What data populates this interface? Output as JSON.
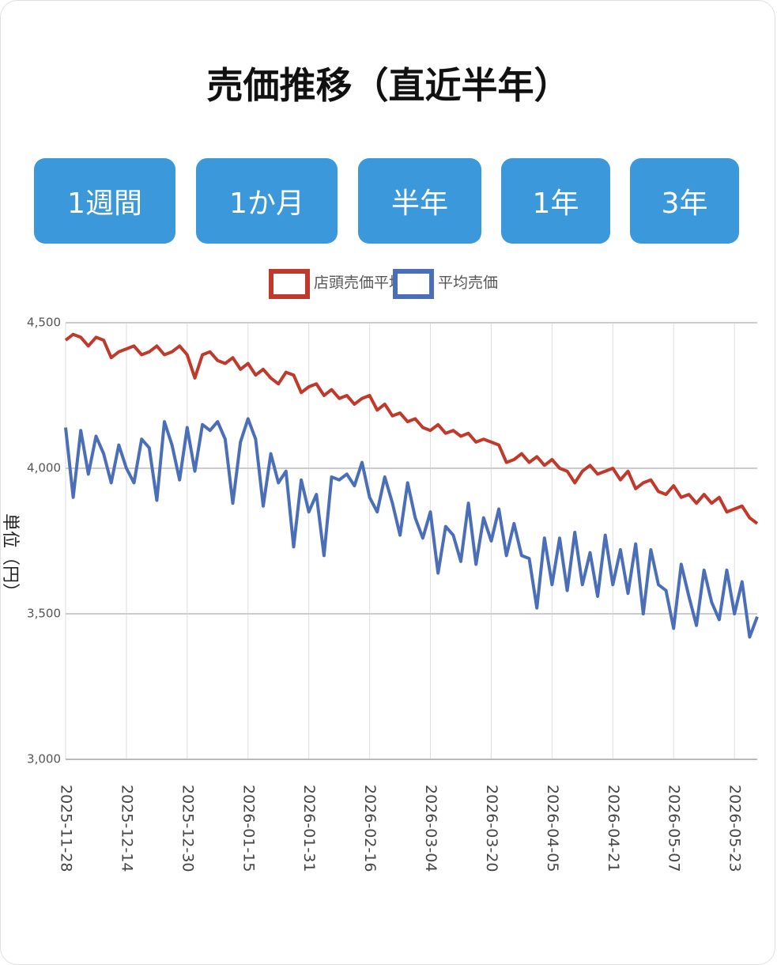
{
  "title": "売価推移（直近半年）",
  "buttons": [
    "1週間",
    "1か月",
    "半年",
    "1年",
    "3年"
  ],
  "chart_data": {
    "type": "line",
    "y_label": "単位（円）",
    "legend_position": "top",
    "grid": true,
    "ylim": [
      3000,
      4500
    ],
    "yticks": [
      {
        "value": 3000,
        "label": "3,000"
      },
      {
        "value": 3500,
        "label": "3,500"
      },
      {
        "value": 4000,
        "label": "4,000"
      },
      {
        "value": 4500,
        "label": "4,500"
      }
    ],
    "xlim": [
      "2025-11-28",
      "2026-05-29"
    ],
    "xticks": [
      "2025-11-28",
      "2025-12-14",
      "2025-12-30",
      "2026-01-15",
      "2026-01-31",
      "2026-02-16",
      "2026-03-04",
      "2026-03-20",
      "2026-04-05",
      "2026-04-21",
      "2026-05-07",
      "2026-05-23"
    ],
    "x": [
      "2025-11-28",
      "2025-11-30",
      "2025-12-02",
      "2025-12-04",
      "2025-12-06",
      "2025-12-08",
      "2025-12-10",
      "2025-12-12",
      "2025-12-14",
      "2025-12-16",
      "2025-12-18",
      "2025-12-20",
      "2025-12-22",
      "2025-12-24",
      "2025-12-26",
      "2025-12-28",
      "2025-12-30",
      "2026-01-01",
      "2026-01-03",
      "2026-01-05",
      "2026-01-07",
      "2026-01-09",
      "2026-01-11",
      "2026-01-13",
      "2026-01-15",
      "2026-01-17",
      "2026-01-19",
      "2026-01-21",
      "2026-01-23",
      "2026-01-25",
      "2026-01-27",
      "2026-01-29",
      "2026-01-31",
      "2026-02-02",
      "2026-02-04",
      "2026-02-06",
      "2026-02-08",
      "2026-02-10",
      "2026-02-12",
      "2026-02-14",
      "2026-02-16",
      "2026-02-18",
      "2026-02-20",
      "2026-02-22",
      "2026-02-24",
      "2026-02-26",
      "2026-02-28",
      "2026-03-02",
      "2026-03-04",
      "2026-03-06",
      "2026-03-08",
      "2026-03-10",
      "2026-03-12",
      "2026-03-14",
      "2026-03-16",
      "2026-03-18",
      "2026-03-20",
      "2026-03-22",
      "2026-03-24",
      "2026-03-26",
      "2026-03-28",
      "2026-03-30",
      "2026-04-01",
      "2026-04-03",
      "2026-04-05",
      "2026-04-07",
      "2026-04-09",
      "2026-04-11",
      "2026-04-13",
      "2026-04-15",
      "2026-04-17",
      "2026-04-19",
      "2026-04-21",
      "2026-04-23",
      "2026-04-25",
      "2026-04-27",
      "2026-04-29",
      "2026-05-01",
      "2026-05-03",
      "2026-05-05",
      "2026-05-07",
      "2026-05-09",
      "2026-05-11",
      "2026-05-13",
      "2026-05-15",
      "2026-05-17",
      "2026-05-19",
      "2026-05-21",
      "2026-05-23",
      "2026-05-25",
      "2026-05-27",
      "2026-05-29"
    ],
    "series": [
      {
        "name": "店頭売価平均",
        "color": "#c0392b",
        "values": [
          4440,
          4460,
          4450,
          4420,
          4450,
          4440,
          4380,
          4400,
          4410,
          4420,
          4390,
          4400,
          4420,
          4390,
          4400,
          4420,
          4390,
          4310,
          4390,
          4400,
          4370,
          4360,
          4380,
          4340,
          4360,
          4320,
          4340,
          4310,
          4290,
          4330,
          4320,
          4260,
          4280,
          4290,
          4250,
          4270,
          4240,
          4250,
          4220,
          4240,
          4250,
          4200,
          4220,
          4180,
          4190,
          4160,
          4170,
          4140,
          4130,
          4150,
          4120,
          4130,
          4110,
          4120,
          4090,
          4100,
          4090,
          4080,
          4020,
          4030,
          4050,
          4020,
          4040,
          4010,
          4030,
          4000,
          3990,
          3950,
          3990,
          4010,
          3980,
          3990,
          4000,
          3960,
          3990,
          3930,
          3950,
          3960,
          3920,
          3910,
          3940,
          3900,
          3910,
          3880,
          3910,
          3880,
          3900,
          3850,
          3860,
          3870,
          3830,
          3810
        ]
      },
      {
        "name": "平均売価",
        "color": "#4a6fb8",
        "values": [
          4140,
          3900,
          4130,
          3980,
          4110,
          4050,
          3950,
          4080,
          4000,
          3950,
          4100,
          4070,
          3890,
          4160,
          4080,
          3960,
          4140,
          3990,
          4150,
          4130,
          4160,
          4100,
          3880,
          4090,
          4170,
          4100,
          3870,
          4050,
          3950,
          3990,
          3730,
          3960,
          3850,
          3910,
          3700,
          3970,
          3960,
          3980,
          3940,
          4020,
          3900,
          3850,
          3970,
          3880,
          3770,
          3950,
          3830,
          3760,
          3850,
          3640,
          3800,
          3770,
          3680,
          3880,
          3670,
          3830,
          3750,
          3860,
          3700,
          3810,
          3700,
          3690,
          3520,
          3760,
          3600,
          3760,
          3580,
          3780,
          3600,
          3710,
          3560,
          3770,
          3600,
          3720,
          3570,
          3740,
          3500,
          3720,
          3600,
          3580,
          3450,
          3670,
          3560,
          3460,
          3650,
          3540,
          3480,
          3650,
          3500,
          3610,
          3420,
          3490
        ]
      }
    ]
  }
}
